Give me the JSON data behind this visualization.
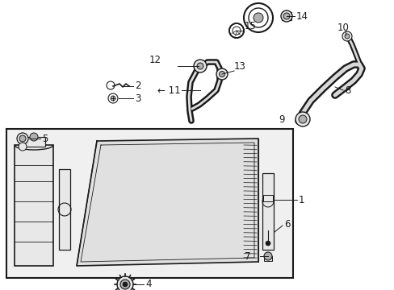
{
  "background_color": "#ffffff",
  "fig_width": 4.89,
  "fig_height": 3.6,
  "dpi": 100,
  "label_fontsize": 8.5,
  "line_color": "#1a1a1a",
  "text_color": "#1a1a1a",
  "gray_fill": "#d8d8d8",
  "light_gray": "#e8e8e8",
  "mid_gray": "#b0b0b0"
}
